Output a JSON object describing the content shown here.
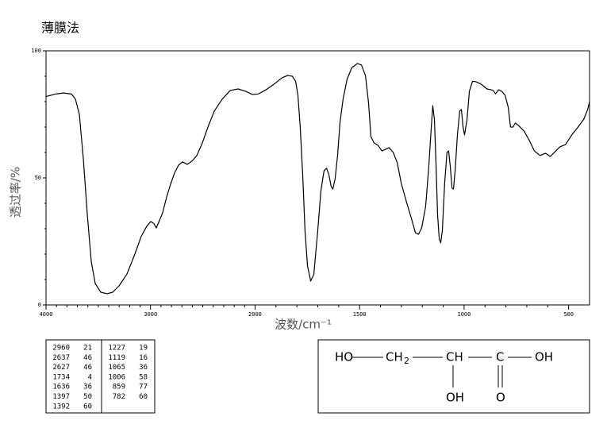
{
  "chart_data": {
    "type": "line",
    "title": "薄膜法",
    "xlabel": "波数/cm⁻¹",
    "ylabel": "透过率/%",
    "xlim": [
      4000,
      400
    ],
    "x_scale_change_at": 2000,
    "x_scale_factor": 2,
    "xticks": [
      4000,
      3000,
      2000,
      1500,
      1000,
      500
    ],
    "xminorticks": [
      3900,
      3800,
      3700,
      3600,
      3500,
      3400,
      3300,
      3200,
      3100,
      2900,
      2800,
      2700,
      2600,
      2500,
      2400,
      2300,
      2200,
      2100,
      1900,
      1800,
      1700,
      1600,
      1400,
      1300,
      1200,
      1100,
      900,
      800,
      700,
      600
    ],
    "ylim": [
      0,
      100
    ],
    "yticks": [
      0,
      50,
      100
    ],
    "yminorticks": [
      10,
      20,
      30,
      40,
      60,
      70,
      80,
      90
    ],
    "color": "#000000",
    "x": [
      4000,
      3909,
      3833,
      3757,
      3719,
      3681,
      3643,
      3605,
      3567,
      3529,
      3476,
      3415,
      3362,
      3301,
      3225,
      3150,
      3089,
      3036,
      2998,
      2967,
      2945,
      2922,
      2884,
      2846,
      2808,
      2770,
      2732,
      2694,
      2649,
      2603,
      2557,
      2504,
      2451,
      2390,
      2314,
      2238,
      2162,
      2086,
      2025,
      1985,
      1947,
      1909,
      1871,
      1844,
      1822,
      1806,
      1795,
      1784,
      1772,
      1761,
      1749,
      1734,
      1719,
      1700,
      1685,
      1670,
      1658,
      1647,
      1636,
      1628,
      1617,
      1605,
      1594,
      1579,
      1560,
      1537,
      1510,
      1491,
      1472,
      1457,
      1446,
      1431,
      1412,
      1393,
      1374,
      1359,
      1339,
      1320,
      1301,
      1275,
      1252,
      1233,
      1218,
      1203,
      1184,
      1169,
      1157,
      1150,
      1142,
      1134,
      1127,
      1119,
      1112,
      1104,
      1093,
      1082,
      1074,
      1066,
      1058,
      1051,
      1043,
      1032,
      1021,
      1013,
      1005,
      998,
      986,
      975,
      960,
      941,
      914,
      891,
      872,
      861,
      850,
      834,
      819,
      804,
      789,
      778,
      766,
      755,
      740,
      713,
      686,
      664,
      637,
      610,
      588,
      561,
      542,
      515,
      485,
      455,
      428,
      409,
      400
    ],
    "values": [
      82,
      83,
      83.4,
      83,
      81,
      75,
      57.5,
      35.6,
      17,
      8.4,
      5,
      4.4,
      5,
      7.5,
      12.2,
      20,
      27,
      31,
      32.8,
      32,
      30.3,
      32.5,
      36.3,
      42.5,
      47.5,
      52,
      55,
      56.3,
      55.3,
      56.6,
      58.8,
      63.8,
      70,
      76.3,
      81,
      84.4,
      85,
      84,
      82.8,
      83,
      84.7,
      86.9,
      89.4,
      90.3,
      90,
      88,
      82.5,
      70,
      51,
      29,
      15.3,
      9.4,
      12,
      29.4,
      45,
      52.8,
      53.8,
      51.3,
      46.6,
      45.6,
      49.7,
      59,
      71.6,
      81,
      88.8,
      93.4,
      95,
      94.4,
      90.3,
      79.4,
      66.3,
      63.8,
      62.8,
      60.6,
      61.3,
      61.9,
      60,
      56,
      48,
      40.3,
      34,
      28.4,
      27.8,
      30.3,
      38.8,
      54.4,
      70,
      78.4,
      73,
      54.4,
      35.6,
      26,
      24.4,
      29.4,
      48,
      60,
      60.6,
      54.4,
      46,
      45.6,
      52.8,
      66.9,
      76.3,
      76.9,
      70,
      66.9,
      73,
      84,
      88,
      87.8,
      86.6,
      85,
      84.7,
      84.4,
      83.1,
      84.7,
      84,
      82.5,
      77.8,
      70,
      70,
      71.6,
      70.6,
      68.4,
      64.4,
      60.6,
      58.8,
      59.7,
      58.4,
      60.6,
      62.2,
      63.1,
      66.9,
      70,
      73,
      76.9,
      80
    ]
  },
  "peak_table": {
    "left": [
      [
        2960,
        21
      ],
      [
        2637,
        46
      ],
      [
        2627,
        46
      ],
      [
        1734,
        4
      ],
      [
        1636,
        36
      ],
      [
        1397,
        50
      ],
      [
        1392,
        60
      ]
    ],
    "right": [
      [
        1227,
        19
      ],
      [
        1119,
        16
      ],
      [
        1065,
        36
      ],
      [
        1006,
        58
      ],
      [
        859,
        77
      ],
      [
        782,
        60
      ]
    ]
  },
  "structure": {
    "ho": "HO",
    "ch2": "CH",
    "ch2_sub": "2",
    "ch": "CH",
    "c": "C",
    "oh": "OH",
    "oh_below": "OH",
    "o_below": "O"
  }
}
